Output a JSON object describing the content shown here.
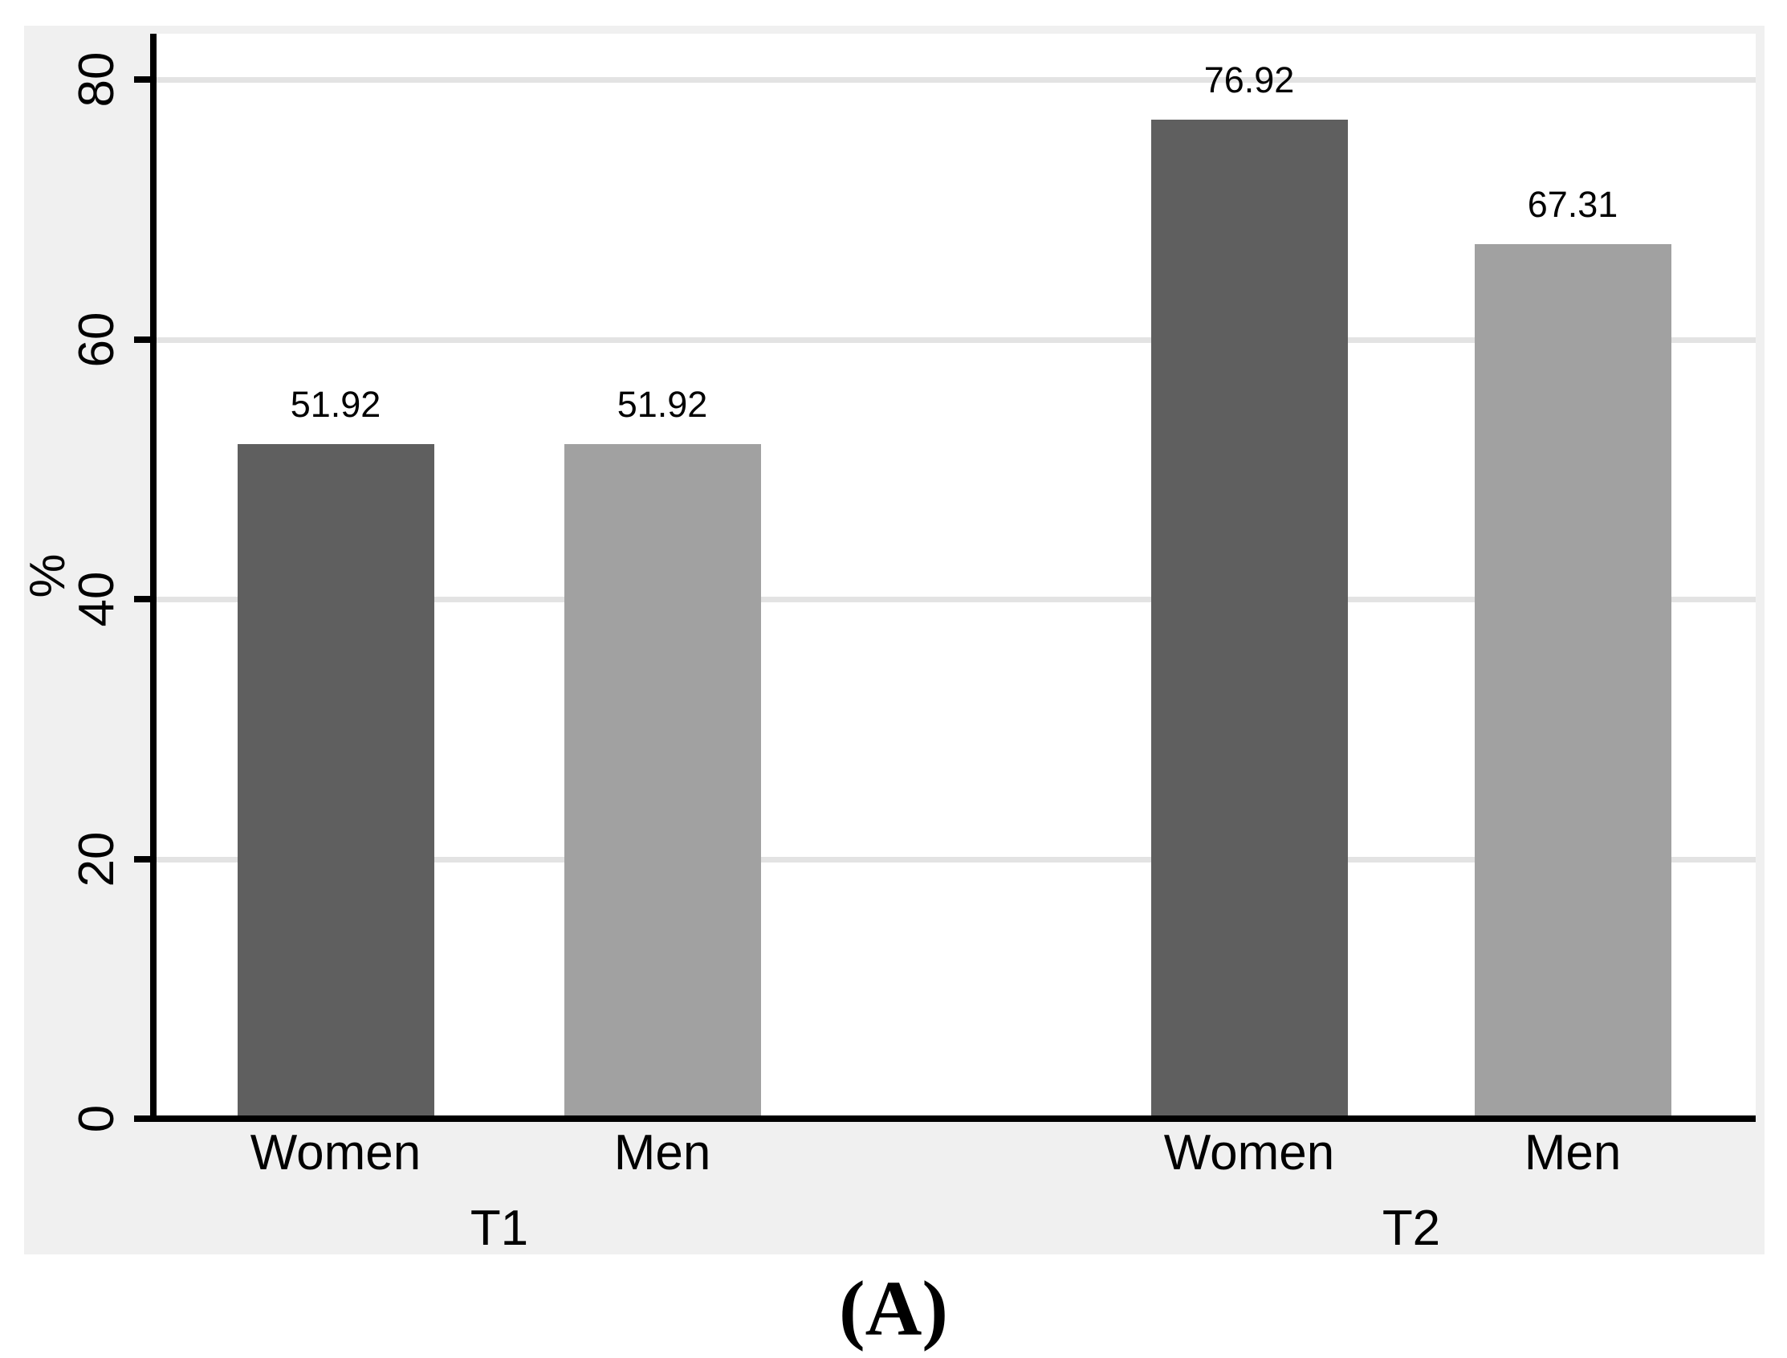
{
  "chart_data": {
    "type": "bar",
    "title": "",
    "xlabel": "",
    "ylabel": "%",
    "ylim": [
      0,
      80
    ],
    "yticks": [
      0,
      20,
      40,
      60,
      80
    ],
    "ytick_labels": [
      "0",
      "20",
      "40",
      "60",
      "80"
    ],
    "grid": true,
    "legend_position": "none",
    "group_labels": [
      "T1",
      "T2"
    ],
    "bars": [
      {
        "group": "T1",
        "category": "Women",
        "value": 51.92,
        "value_label": "51.92",
        "series": "women"
      },
      {
        "group": "T1",
        "category": "Men",
        "value": 51.92,
        "value_label": "51.92",
        "series": "men"
      },
      {
        "group": "T2",
        "category": "Women",
        "value": 76.92,
        "value_label": "76.92",
        "series": "women"
      },
      {
        "group": "T2",
        "category": "Men",
        "value": 67.31,
        "value_label": "67.31",
        "series": "men"
      }
    ],
    "panel_label": "(A)"
  },
  "colors": {
    "women": "#5f5f5f",
    "men": "#a1a1a1",
    "outer_bg": "#f0f0f0",
    "plot_bg": "#ffffff",
    "gridline": "#e3e3e3",
    "axis": "#000000",
    "text": "#000000"
  }
}
